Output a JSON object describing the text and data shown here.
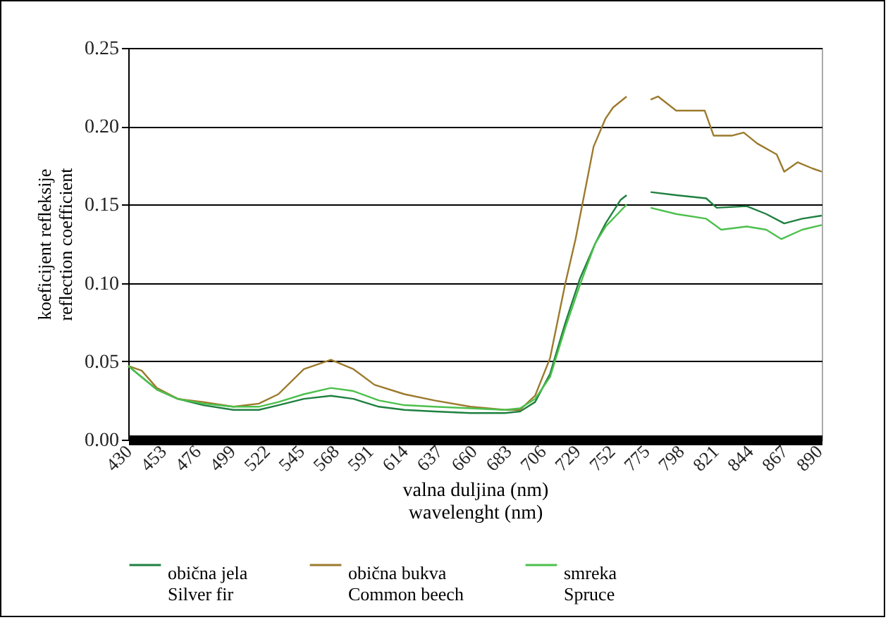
{
  "chart_data": {
    "type": "line",
    "xlabel": "valna duljina (nm)\nwavelenght (nm)",
    "ylabel": "koeficijent refleksije\nreflection coefficient",
    "xlim": [
      430,
      892
    ],
    "xticks": [
      430,
      453,
      476,
      499,
      522,
      545,
      568,
      591,
      614,
      637,
      660,
      683,
      706,
      729,
      752,
      775,
      798,
      821,
      844,
      867,
      890
    ],
    "ylim": [
      0,
      0.25
    ],
    "yticks": [
      {
        "value": 0,
        "label": "0.00"
      },
      0.05,
      {
        "value": 0.1,
        "label": "0.10"
      },
      0.15,
      {
        "value": 0.2,
        "label": "0.20"
      },
      0.25
    ],
    "grid": "y",
    "legend": "bottom",
    "series": [
      {
        "name": "obična jela\nSilver fir",
        "color": "#1e8040",
        "x": [
          430,
          449,
          463,
          480,
          500,
          517,
          530,
          547,
          565,
          580,
          597,
          614,
          634,
          658,
          681,
          691,
          701,
          711,
          721,
          731,
          741,
          748,
          758,
          762,
          770,
          778,
          795,
          815,
          822,
          842,
          855,
          867,
          879,
          892
        ],
        "values": [
          0.047,
          0.032,
          0.026,
          0.022,
          0.019,
          0.019,
          0.022,
          0.026,
          0.028,
          0.026,
          0.021,
          0.019,
          0.018,
          0.017,
          0.017,
          0.018,
          0.024,
          0.042,
          0.074,
          0.103,
          0.125,
          0.138,
          0.153,
          0.156,
          null,
          0.158,
          0.156,
          0.154,
          0.148,
          0.149,
          0.144,
          0.138,
          0.141,
          0.143
        ]
      },
      {
        "name": "obična bukva\nCommon beech",
        "color": "#9c7a2c",
        "x": [
          430,
          439,
          449,
          463,
          480,
          500,
          517,
          530,
          547,
          565,
          580,
          594,
          614,
          634,
          658,
          681,
          691,
          701,
          711,
          721,
          728,
          740,
          748,
          753,
          762,
          770,
          778,
          783,
          795,
          814,
          820,
          832,
          840,
          849,
          862,
          867,
          876,
          886,
          892
        ],
        "values": [
          0.047,
          0.044,
          0.033,
          0.026,
          0.024,
          0.021,
          0.023,
          0.029,
          0.045,
          0.051,
          0.045,
          0.035,
          0.029,
          0.025,
          0.021,
          0.019,
          0.019,
          0.028,
          0.052,
          0.099,
          0.128,
          0.187,
          0.205,
          0.212,
          0.219,
          null,
          0.217,
          0.219,
          0.21,
          0.21,
          0.194,
          0.194,
          0.196,
          0.189,
          0.182,
          0.171,
          0.177,
          0.173,
          0.171
        ]
      },
      {
        "name": "smreka\nSpruce",
        "color": "#4cc04c",
        "x": [
          430,
          449,
          463,
          480,
          500,
          517,
          530,
          547,
          565,
          580,
          597,
          614,
          634,
          658,
          681,
          691,
          701,
          711,
          721,
          731,
          741,
          748,
          762,
          770,
          778,
          795,
          815,
          825,
          842,
          855,
          865,
          879,
          892
        ],
        "values": [
          0.047,
          0.032,
          0.026,
          0.023,
          0.021,
          0.021,
          0.024,
          0.029,
          0.033,
          0.031,
          0.025,
          0.022,
          0.021,
          0.02,
          0.019,
          0.02,
          0.026,
          0.04,
          0.071,
          0.099,
          0.125,
          0.136,
          0.15,
          null,
          0.148,
          0.144,
          0.141,
          0.134,
          0.136,
          0.134,
          0.128,
          0.134,
          0.137
        ]
      }
    ]
  }
}
